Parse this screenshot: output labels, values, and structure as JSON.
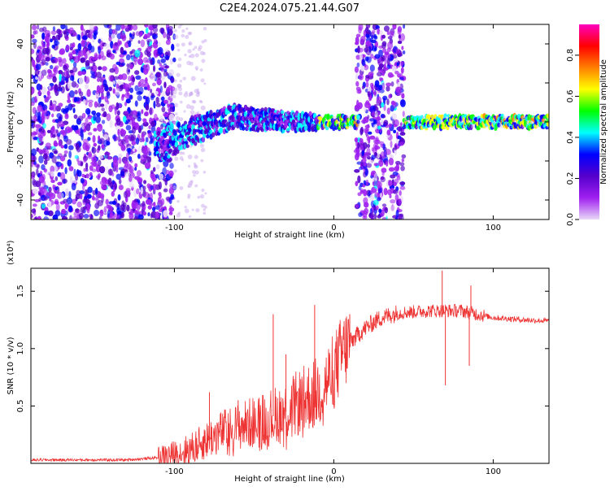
{
  "page_title": "C2E4.2024.075.21.44.G07",
  "chart_data": [
    {
      "type": "heatmap",
      "xlabel": "Height of straight line (km)",
      "ylabel": "Frequency (Hz)",
      "xlim": [
        -190,
        135
      ],
      "ylim": [
        -50,
        50
      ],
      "xticks": [
        -100,
        0,
        100
      ],
      "yticks": [
        -40,
        -20,
        0,
        20,
        40
      ],
      "colorbar": {
        "label": "Normalized spectral amplitude",
        "range": [
          0,
          0.95
        ],
        "ticks": [
          0.0,
          0.2,
          0.4,
          0.6,
          0.8
        ],
        "colors": [
          "#e8d8f8",
          "#a020f0",
          "#5500cc",
          "#0000ff",
          "#00ffff",
          "#00ff00",
          "#ffff00",
          "#ff8000",
          "#ff0000",
          "#ff00c0"
        ]
      },
      "trace": {
        "x": [
          -112,
          -100,
          -90,
          -80,
          -70,
          -60,
          -50,
          -40,
          -30,
          -20,
          -10,
          0,
          10,
          14,
          45,
          60,
          80,
          100,
          120,
          135
        ],
        "y": [
          -13,
          -9,
          -5,
          -2,
          1,
          3,
          1,
          1,
          0,
          0,
          0,
          0,
          0,
          0,
          0,
          0,
          0,
          0,
          0,
          0
        ]
      },
      "noise_regions": [
        [
          -190,
          -100
        ],
        [
          14,
          44
        ]
      ]
    },
    {
      "type": "line",
      "xlabel": "Height of straight line (km)",
      "ylabel": "SNR (10 * v/v)",
      "y_multiplier": "(x10⁴)",
      "xlim": [
        -190,
        135
      ],
      "ylim": [
        0,
        1.7
      ],
      "xticks": [
        -100,
        0,
        100
      ],
      "yticks": [
        0.5,
        1.0,
        1.5
      ],
      "color": "#ee3333",
      "x": [
        -190,
        -170,
        -150,
        -130,
        -110,
        -100,
        -90,
        -80,
        -70,
        -60,
        -50,
        -40,
        -30,
        -20,
        -10,
        -5,
        0,
        5,
        10,
        15,
        20,
        25,
        30,
        40,
        50,
        60,
        70,
        80,
        90,
        100,
        110,
        120,
        135
      ],
      "y": [
        0.03,
        0.03,
        0.03,
        0.03,
        0.05,
        0.08,
        0.12,
        0.2,
        0.28,
        0.32,
        0.36,
        0.4,
        0.45,
        0.55,
        0.62,
        0.7,
        0.8,
        0.95,
        1.05,
        1.12,
        1.18,
        1.23,
        1.27,
        1.31,
        1.32,
        1.33,
        1.33,
        1.33,
        1.3,
        1.27,
        1.26,
        1.25,
        1.24
      ],
      "spikes": [
        {
          "x": -78,
          "y": 0.62
        },
        {
          "x": -60,
          "y": 0.55
        },
        {
          "x": -38,
          "y": 1.3
        },
        {
          "x": -30,
          "y": 0.95
        },
        {
          "x": -12,
          "y": 1.38
        },
        {
          "x": 10,
          "y": 1.3
        },
        {
          "x": 68,
          "y": 1.68
        },
        {
          "x": 70,
          "y": 0.68
        },
        {
          "x": 86,
          "y": 1.55
        },
        {
          "x": 85,
          "y": 0.85
        }
      ]
    }
  ]
}
